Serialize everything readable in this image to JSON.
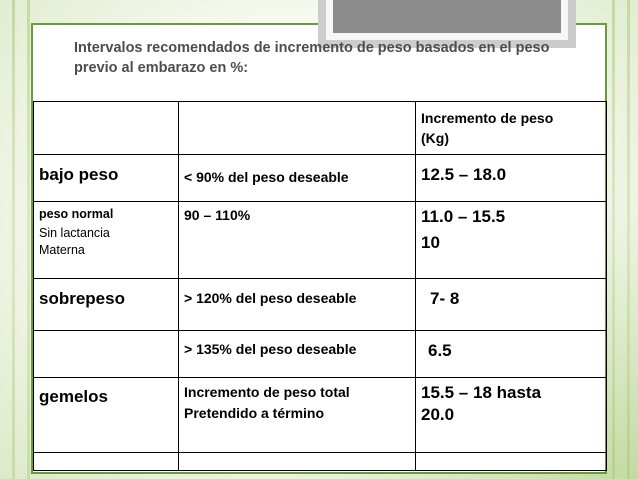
{
  "title": "Intervalos recomendados de incremento de peso basados en el peso previo al embarazo en %:",
  "header": {
    "col1": "",
    "col2": "",
    "col3_line1": "Incremento de peso",
    "col3_line2": "(Kg)"
  },
  "rows": [
    {
      "category": "bajo peso",
      "criterion": "< 90% del peso deseable",
      "gain": "12.5 – 18.0"
    },
    {
      "category": "peso normal",
      "category_sub1": "Sin lactancia",
      "category_sub2": "Materna",
      "criterion": "90 – 110%",
      "gain_line1": "11.0 – 15.5",
      "gain_line2": "10"
    },
    {
      "category": "sobrepeso",
      "criterion": "> 120% del peso deseable",
      "gain": "7- 8"
    },
    {
      "category": "",
      "criterion": "> 135% del peso deseable",
      "gain": "6.5"
    },
    {
      "category": "gemelos",
      "criterion_line1": "Incremento de peso total",
      "criterion_line2": "Pretendido a término",
      "gain_line1": "15.5 – 18 hasta",
      "gain_line2": "20.0"
    }
  ],
  "colors": {
    "frame": "#6a9a3c",
    "title_text": "#4d4d4d",
    "background": "#f5f9ee"
  }
}
